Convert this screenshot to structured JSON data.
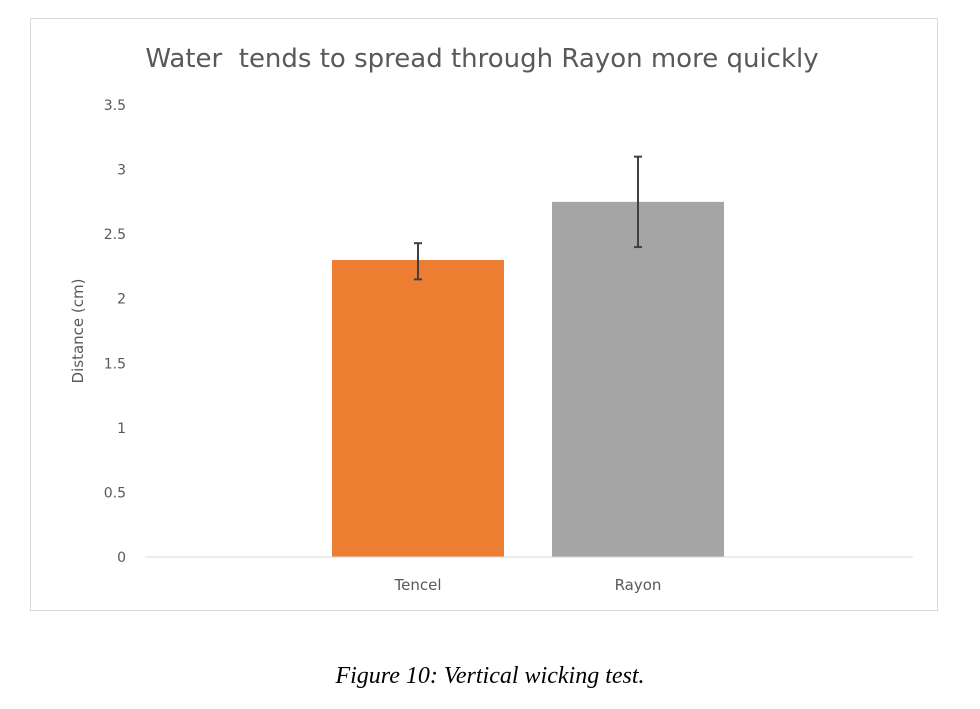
{
  "chart_data": {
    "type": "bar",
    "title": "Water  tends to spread through Rayon more quickly",
    "xlabel": "",
    "ylabel": "Distance (cm)",
    "categories": [
      "Tencel",
      "Rayon"
    ],
    "values": [
      2.3,
      2.75
    ],
    "error_bars": [
      {
        "low": 2.15,
        "high": 2.43
      },
      {
        "low": 2.4,
        "high": 3.1
      }
    ],
    "ylim": [
      0,
      3.5
    ],
    "yticks": [
      "0",
      "0.5",
      "1",
      "1.5",
      "2",
      "2.5",
      "3",
      "3.5"
    ],
    "grid": false,
    "legend": "none",
    "colors": [
      "#ed7d31",
      "#a5a5a5"
    ]
  },
  "caption": "Figure 10: Vertical wicking test."
}
